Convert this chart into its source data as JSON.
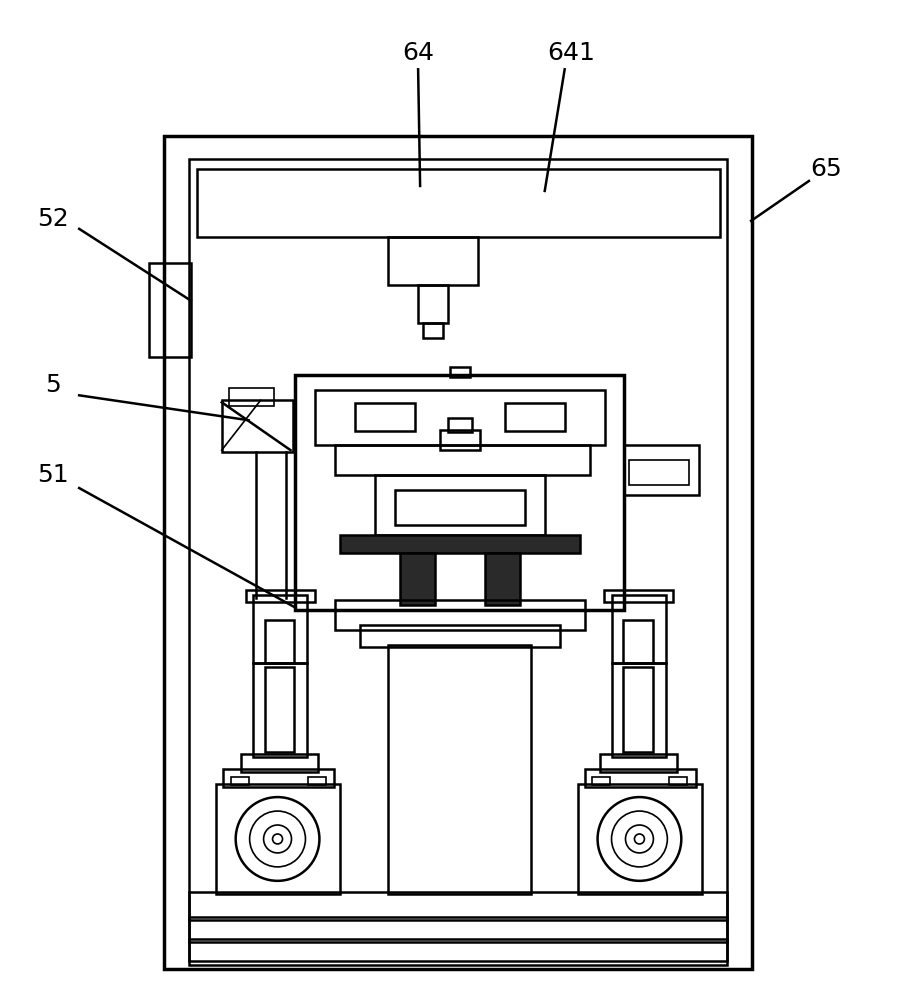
{
  "bg_color": "#ffffff",
  "line_color": "#000000",
  "lw_thin": 1.2,
  "lw_med": 1.8,
  "lw_thick": 2.5,
  "fig_width": 9.15,
  "fig_height": 10.0
}
